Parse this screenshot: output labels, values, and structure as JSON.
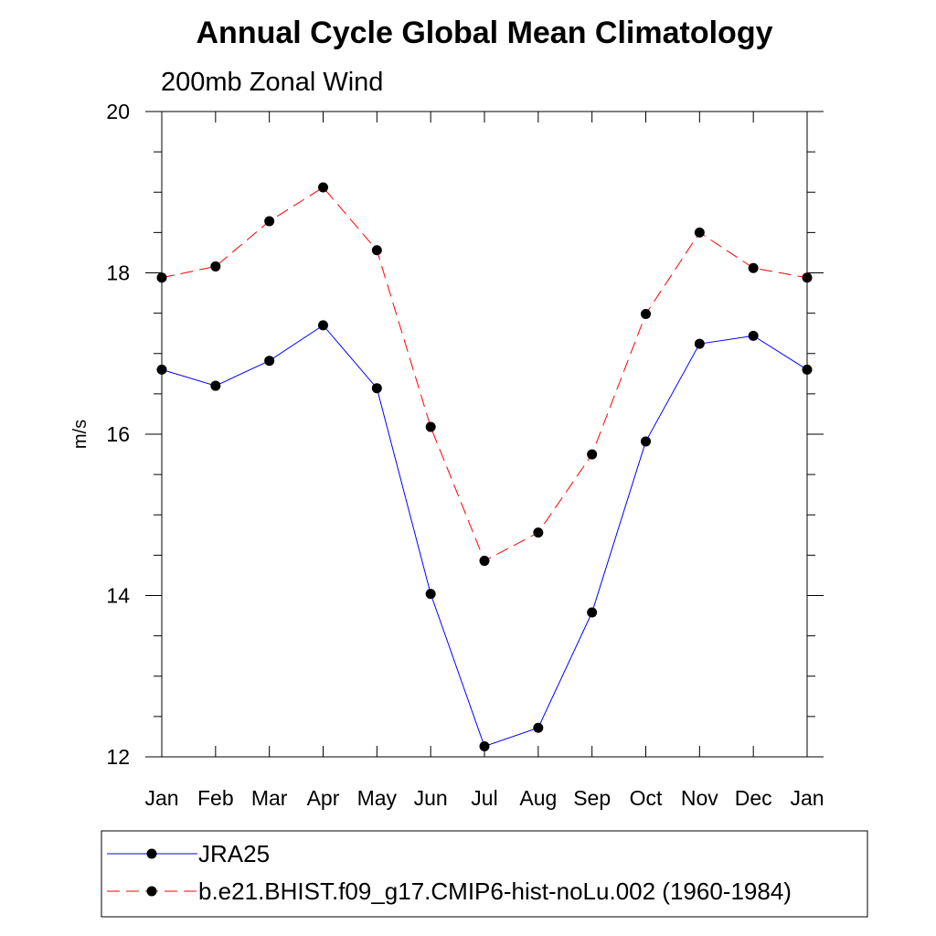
{
  "chart_data": {
    "type": "line",
    "title": "Annual Cycle Global Mean Climatology",
    "subtitle": "200mb Zonal Wind",
    "xlabel": "",
    "ylabel": "m/s",
    "categories": [
      "Jan",
      "Feb",
      "Mar",
      "Apr",
      "May",
      "Jun",
      "Jul",
      "Aug",
      "Sep",
      "Oct",
      "Nov",
      "Dec",
      "Jan"
    ],
    "ylim": [
      12,
      20
    ],
    "yticks": [
      12,
      14,
      16,
      18,
      20
    ],
    "grid": false,
    "legend_position": "bottom",
    "series": [
      {
        "name": "JRA25",
        "color": "#0000ff",
        "dash": "solid",
        "marker": "filled-circle",
        "values": [
          16.8,
          16.6,
          16.91,
          17.35,
          16.57,
          14.02,
          12.13,
          12.36,
          13.79,
          15.91,
          17.12,
          17.22,
          16.8
        ]
      },
      {
        "name": "b.e21.BHIST.f09_g17.CMIP6-hist-noLu.002 (1960-1984)",
        "color": "#ff0000",
        "dash": "dashed",
        "marker": "filled-circle",
        "values": [
          17.94,
          18.08,
          18.64,
          19.06,
          18.28,
          16.09,
          14.43,
          14.78,
          15.75,
          17.49,
          18.5,
          18.06,
          17.94
        ]
      }
    ]
  }
}
